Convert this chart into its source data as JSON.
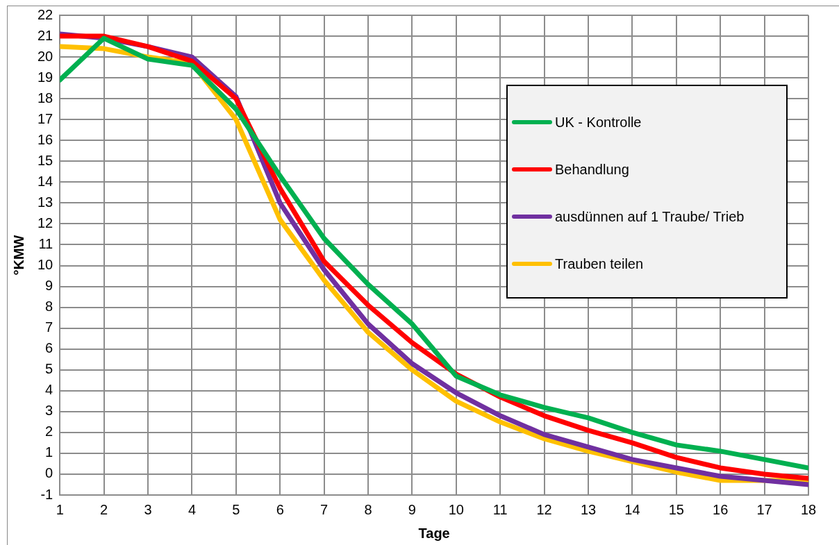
{
  "chart_data": {
    "type": "line",
    "xlabel": "Tage",
    "ylabel": "°KMW",
    "x": [
      1,
      2,
      3,
      4,
      5,
      6,
      7,
      8,
      9,
      10,
      11,
      12,
      13,
      14,
      15,
      16,
      17,
      18
    ],
    "xlim": [
      1,
      18
    ],
    "xticks": [
      1,
      2,
      3,
      4,
      5,
      6,
      7,
      8,
      9,
      10,
      11,
      12,
      13,
      14,
      15,
      16,
      17,
      18
    ],
    "ylim": [
      -1,
      22
    ],
    "yticks": [
      -1,
      0,
      1,
      2,
      3,
      4,
      5,
      6,
      7,
      8,
      9,
      10,
      11,
      12,
      13,
      14,
      15,
      16,
      17,
      18,
      19,
      20,
      21,
      22
    ],
    "grid": true,
    "legend": "right",
    "marker": "none",
    "line_style": "solid",
    "series": [
      {
        "name": "UK - Kontrolle",
        "color": "#00b050",
        "values": [
          18.9,
          20.9,
          19.9,
          19.6,
          17.5,
          14.3,
          11.3,
          9.1,
          7.2,
          4.7,
          3.8,
          3.2,
          2.7,
          2.0,
          1.4,
          1.1,
          0.7,
          0.3
        ]
      },
      {
        "name": "Behandlung",
        "color": "#ff0000",
        "values": [
          21.0,
          21.0,
          20.5,
          19.8,
          18.0,
          13.7,
          10.2,
          8.1,
          6.3,
          4.8,
          3.7,
          2.8,
          2.1,
          1.5,
          0.8,
          0.3,
          0.0,
          -0.2
        ]
      },
      {
        "name": "ausdünnen auf 1 Traube/ Trieb",
        "color": "#7030a0",
        "values": [
          21.1,
          20.9,
          20.5,
          20.0,
          18.1,
          13.0,
          9.8,
          7.2,
          5.3,
          3.9,
          2.8,
          1.9,
          1.3,
          0.7,
          0.3,
          -0.1,
          -0.3,
          -0.5
        ]
      },
      {
        "name": "Trauben teilen",
        "color": "#ffc000",
        "values": [
          20.5,
          20.4,
          20.0,
          19.7,
          17.0,
          12.2,
          9.3,
          6.8,
          5.0,
          3.5,
          2.5,
          1.7,
          1.1,
          0.6,
          0.1,
          -0.3,
          -0.3,
          -0.3
        ]
      }
    ]
  }
}
